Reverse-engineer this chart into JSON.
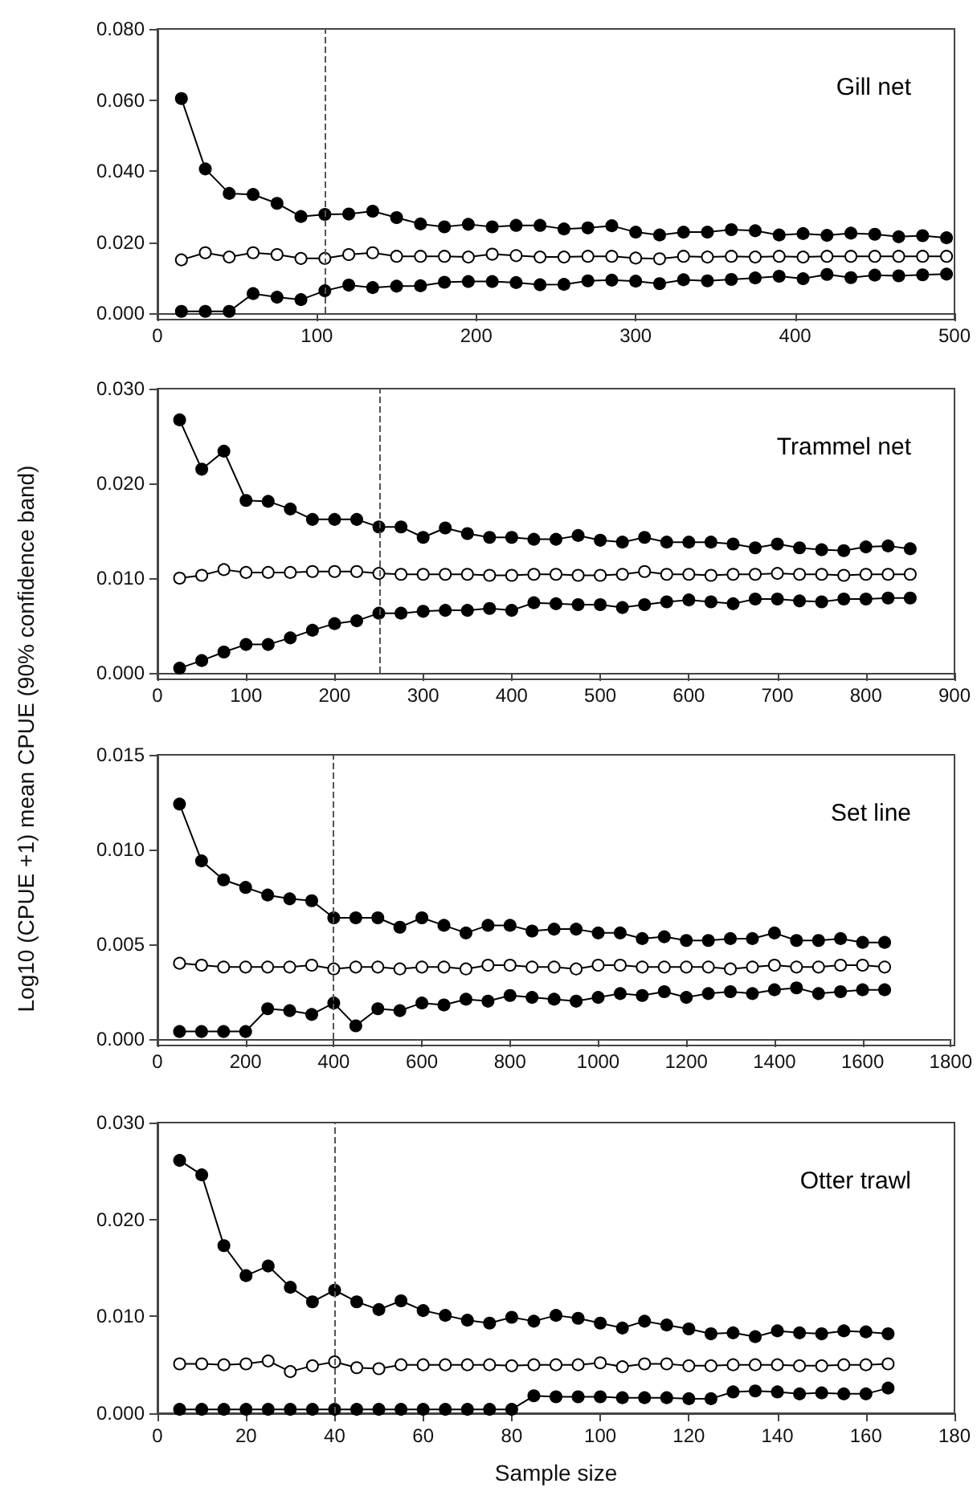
{
  "chart_data": [
    {
      "type": "line",
      "title": "Gill net",
      "marker": "circle",
      "x": [
        15,
        30,
        45,
        60,
        75,
        90,
        105,
        120,
        135,
        150,
        165,
        180,
        195,
        210,
        225,
        240,
        255,
        270,
        285,
        300,
        315,
        330,
        345,
        360,
        375,
        390,
        405,
        420,
        435,
        450,
        465,
        480,
        495
      ],
      "xlim": [
        0,
        500
      ],
      "xticks": [
        0,
        100,
        200,
        300,
        400,
        500
      ],
      "ylim": [
        0,
        0.08
      ],
      "yticks": [
        {
          "value": 0,
          "label": "0.000"
        },
        {
          "value": 0.02,
          "label": "0.020"
        },
        {
          "value": 0.04,
          "label": "0.040"
        },
        {
          "value": 0.06,
          "label": "0.060"
        },
        {
          "value": 0.08,
          "label": "0.080"
        }
      ],
      "ref_lines": [
        {
          "axis": "x",
          "value": 105,
          "line_style": "dashed",
          "color": "#555555"
        }
      ],
      "series": [
        {
          "color": "#000000",
          "values": [
            0.0604,
            0.0406,
            0.0337,
            0.0334,
            0.0309,
            0.0272,
            0.0278,
            0.0279,
            0.0287,
            0.0269,
            0.0251,
            0.0243,
            0.025,
            0.0243,
            0.0247,
            0.0247,
            0.0237,
            0.024,
            0.0246,
            0.0228,
            0.022,
            0.0228,
            0.0228,
            0.0235,
            0.0232,
            0.022,
            0.0224,
            0.0219,
            0.0225,
            0.0222,
            0.0215,
            0.0218,
            0.0212
          ]
        },
        {
          "color": "#ffffff",
          "values": [
            0.015,
            0.017,
            0.0158,
            0.017,
            0.0165,
            0.0154,
            0.0154,
            0.0165,
            0.017,
            0.016,
            0.016,
            0.016,
            0.0158,
            0.0166,
            0.0162,
            0.0158,
            0.0158,
            0.016,
            0.016,
            0.0155,
            0.0153,
            0.016,
            0.0158,
            0.016,
            0.0158,
            0.016,
            0.0158,
            0.016,
            0.016,
            0.016,
            0.016,
            0.016,
            0.016
          ]
        },
        {
          "color": "#000000",
          "values": [
            0.0005,
            0.0005,
            0.0005,
            0.0055,
            0.0045,
            0.0038,
            0.0063,
            0.0079,
            0.0072,
            0.0076,
            0.0077,
            0.0087,
            0.0089,
            0.0089,
            0.0086,
            0.008,
            0.0081,
            0.0091,
            0.0093,
            0.009,
            0.0083,
            0.0094,
            0.0091,
            0.0095,
            0.0099,
            0.0104,
            0.0097,
            0.0109,
            0.01,
            0.0107,
            0.0105,
            0.0108,
            0.011
          ]
        }
      ]
    },
    {
      "type": "line",
      "title": "Trammel net",
      "ylabel": "Log10 (CPUE +1) mean CPUE (90% confidence band)",
      "marker": "circle",
      "x": [
        25,
        50,
        75,
        100,
        125,
        150,
        175,
        200,
        225,
        250,
        275,
        300,
        325,
        350,
        375,
        400,
        425,
        450,
        475,
        500,
        525,
        550,
        575,
        600,
        625,
        650,
        675,
        700,
        725,
        750,
        775,
        800,
        825,
        850
      ],
      "xlim": [
        0,
        900
      ],
      "xticks": [
        0,
        100,
        200,
        300,
        400,
        500,
        600,
        700,
        800,
        900
      ],
      "ylim": [
        0,
        0.03
      ],
      "yticks": [
        {
          "value": 0,
          "label": "0.000"
        },
        {
          "value": 0.01,
          "label": "0.010"
        },
        {
          "value": 0.02,
          "label": "0.020"
        },
        {
          "value": 0.03,
          "label": "0.030"
        }
      ],
      "ref_lines": [
        {
          "axis": "x",
          "value": 250,
          "line_style": "dashed",
          "color": "#555555"
        }
      ],
      "series": [
        {
          "color": "#000000",
          "values": [
            0.0267,
            0.0215,
            0.0234,
            0.0182,
            0.0181,
            0.0173,
            0.0162,
            0.0162,
            0.0162,
            0.0154,
            0.0154,
            0.0143,
            0.0153,
            0.0147,
            0.0143,
            0.0143,
            0.0141,
            0.0141,
            0.0145,
            0.014,
            0.0138,
            0.0143,
            0.0138,
            0.0138,
            0.0138,
            0.0136,
            0.0132,
            0.0136,
            0.0132,
            0.013,
            0.0129,
            0.0133,
            0.0134,
            0.0131
          ]
        },
        {
          "color": "#ffffff",
          "values": [
            0.01,
            0.0103,
            0.0109,
            0.0106,
            0.0106,
            0.0106,
            0.0107,
            0.0107,
            0.0107,
            0.0105,
            0.0104,
            0.0104,
            0.0104,
            0.0104,
            0.0103,
            0.0103,
            0.0104,
            0.0104,
            0.0103,
            0.0103,
            0.0104,
            0.0107,
            0.0104,
            0.0104,
            0.0103,
            0.0104,
            0.0104,
            0.0105,
            0.0104,
            0.0104,
            0.0103,
            0.0104,
            0.0104,
            0.0104
          ]
        },
        {
          "color": "#000000",
          "values": [
            0.0005,
            0.0013,
            0.0022,
            0.003,
            0.003,
            0.0037,
            0.0045,
            0.0052,
            0.0055,
            0.0063,
            0.0063,
            0.0065,
            0.0066,
            0.0066,
            0.0068,
            0.0066,
            0.0074,
            0.0073,
            0.0072,
            0.0072,
            0.0069,
            0.0072,
            0.0075,
            0.0077,
            0.0075,
            0.0073,
            0.0078,
            0.0078,
            0.0076,
            0.0075,
            0.0078,
            0.0078,
            0.0079,
            0.0079
          ]
        }
      ]
    },
    {
      "type": "line",
      "title": "Set line",
      "marker": "circle",
      "x": [
        50,
        100,
        150,
        200,
        250,
        300,
        350,
        400,
        450,
        500,
        550,
        600,
        650,
        700,
        750,
        800,
        850,
        900,
        950,
        1000,
        1050,
        1100,
        1150,
        1200,
        1250,
        1300,
        1350,
        1400,
        1450,
        1500,
        1550,
        1600,
        1650
      ],
      "xlim": [
        0,
        1800
      ],
      "xticks": [
        0,
        200,
        400,
        600,
        800,
        1000,
        1200,
        1400,
        1600,
        1800
      ],
      "ylim": [
        0,
        0.015
      ],
      "yticks": [
        {
          "value": 0,
          "label": "0.000"
        },
        {
          "value": 0.005,
          "label": "0.005"
        },
        {
          "value": 0.01,
          "label": "0.010"
        },
        {
          "value": 0.015,
          "label": "0.015"
        }
      ],
      "ref_lines": [
        {
          "axis": "x",
          "value": 400,
          "line_style": "dashed",
          "color": "#555555"
        }
      ],
      "series": [
        {
          "color": "#000000",
          "values": [
            0.0124,
            0.0094,
            0.0084,
            0.008,
            0.0076,
            0.0074,
            0.0073,
            0.0064,
            0.0064,
            0.0064,
            0.0059,
            0.0064,
            0.006,
            0.0056,
            0.006,
            0.006,
            0.0057,
            0.0058,
            0.0058,
            0.0056,
            0.0056,
            0.0053,
            0.0054,
            0.0052,
            0.0052,
            0.0053,
            0.0053,
            0.0056,
            0.0052,
            0.0052,
            0.0053,
            0.0051,
            0.0051
          ]
        },
        {
          "color": "#ffffff",
          "values": [
            0.004,
            0.0039,
            0.0038,
            0.0038,
            0.0038,
            0.0038,
            0.0039,
            0.0037,
            0.0038,
            0.0038,
            0.0037,
            0.0038,
            0.0038,
            0.0037,
            0.0039,
            0.0039,
            0.0038,
            0.0038,
            0.0037,
            0.0039,
            0.0039,
            0.0038,
            0.0038,
            0.0038,
            0.0038,
            0.0037,
            0.0038,
            0.0039,
            0.0038,
            0.0038,
            0.0039,
            0.0039,
            0.0038
          ]
        },
        {
          "color": "#000000",
          "values": [
            0.0004,
            0.0004,
            0.0004,
            0.0004,
            0.0016,
            0.0015,
            0.0013,
            0.0019,
            0.0007,
            0.0016,
            0.0015,
            0.0019,
            0.0018,
            0.0021,
            0.002,
            0.0023,
            0.0022,
            0.0021,
            0.002,
            0.0022,
            0.0024,
            0.0023,
            0.0025,
            0.0022,
            0.0024,
            0.0025,
            0.0024,
            0.0026,
            0.0027,
            0.0024,
            0.0025,
            0.0026,
            0.0026
          ]
        }
      ]
    },
    {
      "type": "line",
      "title": "Otter trawl",
      "xlabel": "Sample size",
      "marker": "circle",
      "x": [
        5,
        10,
        15,
        20,
        25,
        30,
        35,
        40,
        45,
        50,
        55,
        60,
        65,
        70,
        75,
        80,
        85,
        90,
        95,
        100,
        105,
        110,
        115,
        120,
        125,
        130,
        135,
        140,
        145,
        150,
        155,
        160,
        165
      ],
      "xlim": [
        0,
        180
      ],
      "xticks": [
        0,
        20,
        40,
        60,
        80,
        100,
        120,
        140,
        160,
        180
      ],
      "ylim": [
        0,
        0.03
      ],
      "yticks": [
        {
          "value": 0,
          "label": "0.000"
        },
        {
          "value": 0.01,
          "label": "0.010"
        },
        {
          "value": 0.02,
          "label": "0.020"
        },
        {
          "value": 0.03,
          "label": "0.030"
        }
      ],
      "ref_lines": [
        {
          "axis": "x",
          "value": 40,
          "line_style": "dashed",
          "color": "#555555"
        }
      ],
      "series": [
        {
          "color": "#000000",
          "values": [
            0.0261,
            0.0246,
            0.0173,
            0.0142,
            0.0152,
            0.013,
            0.0115,
            0.0127,
            0.0115,
            0.0107,
            0.0116,
            0.0106,
            0.0101,
            0.0096,
            0.0093,
            0.0099,
            0.0095,
            0.0101,
            0.0098,
            0.0093,
            0.0088,
            0.0095,
            0.0091,
            0.0087,
            0.0082,
            0.0083,
            0.0079,
            0.0085,
            0.0083,
            0.0082,
            0.0085,
            0.0084,
            0.0082
          ]
        },
        {
          "color": "#ffffff",
          "values": [
            0.0051,
            0.0051,
            0.005,
            0.0051,
            0.0054,
            0.0043,
            0.0049,
            0.0053,
            0.0047,
            0.0046,
            0.005,
            0.005,
            0.005,
            0.005,
            0.005,
            0.0049,
            0.005,
            0.005,
            0.005,
            0.0052,
            0.0048,
            0.0051,
            0.0051,
            0.0049,
            0.0049,
            0.005,
            0.005,
            0.005,
            0.0049,
            0.0049,
            0.005,
            0.005,
            0.0051
          ]
        },
        {
          "color": "#000000",
          "values": [
            0.0004,
            0.0004,
            0.0004,
            0.0004,
            0.0004,
            0.0004,
            0.0004,
            0.0004,
            0.0004,
            0.0004,
            0.0004,
            0.0004,
            0.0004,
            0.0004,
            0.0004,
            0.0004,
            0.0018,
            0.0017,
            0.0017,
            0.0017,
            0.0016,
            0.0016,
            0.0016,
            0.0015,
            0.0015,
            0.0022,
            0.0023,
            0.0022,
            0.002,
            0.0021,
            0.002,
            0.002,
            0.0026
          ]
        }
      ]
    }
  ]
}
